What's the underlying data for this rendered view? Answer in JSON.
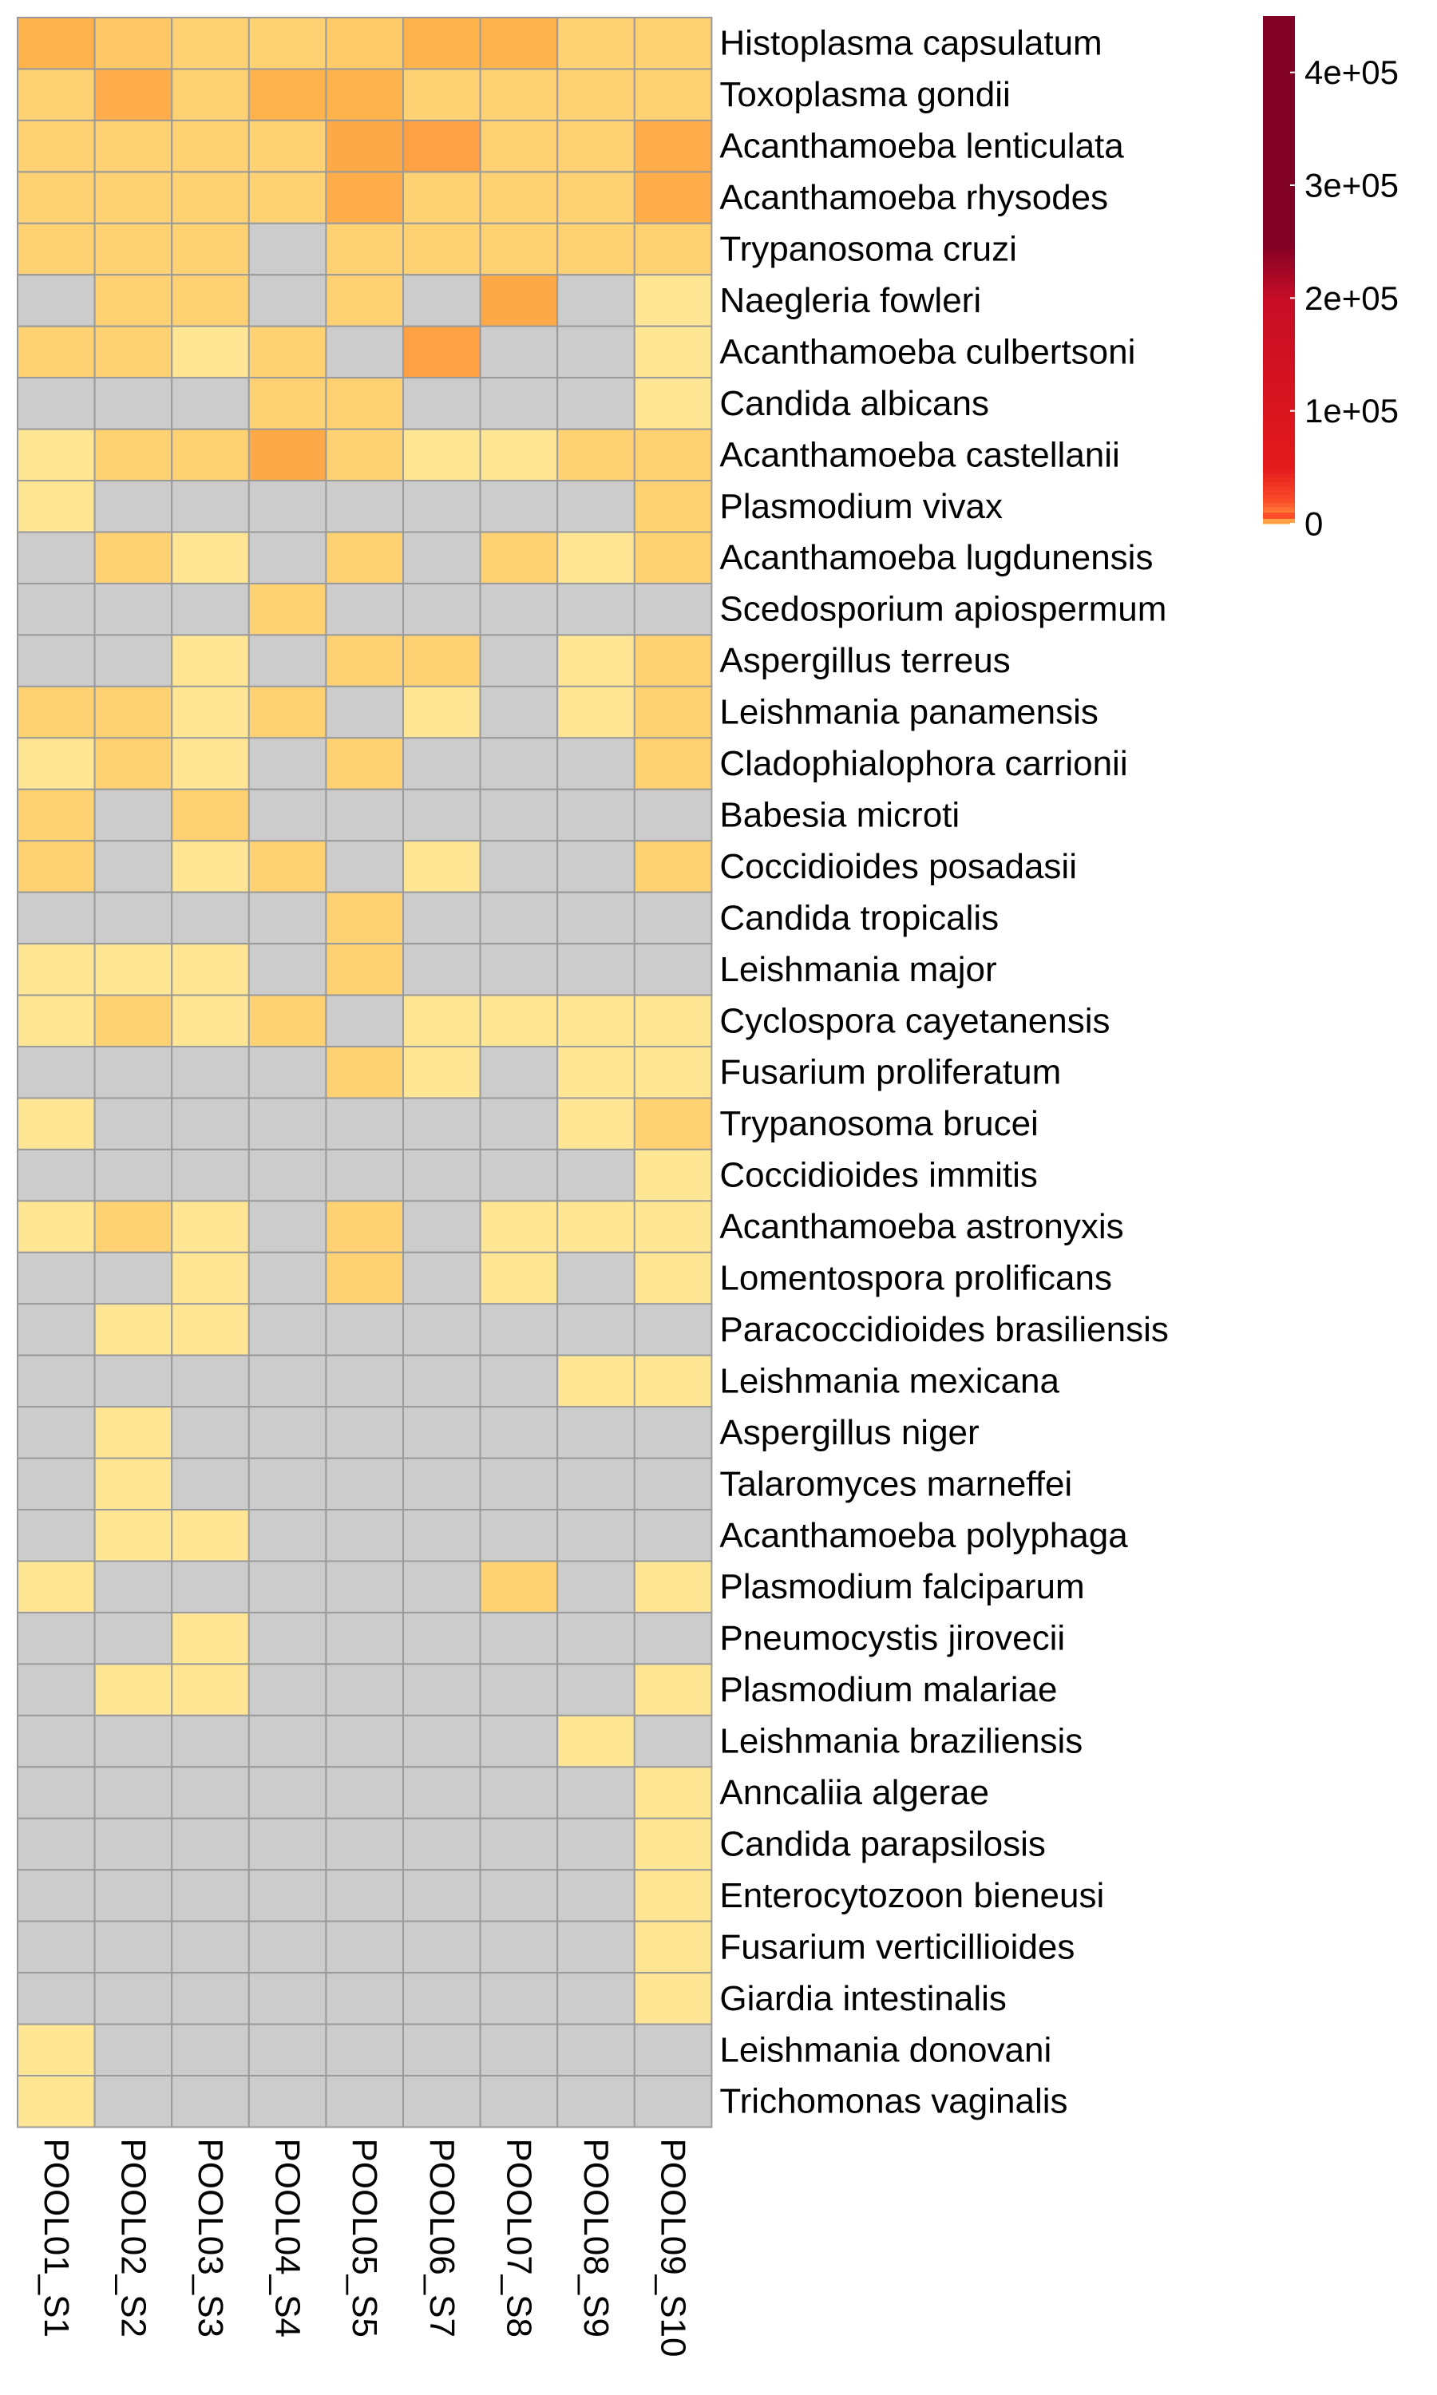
{
  "chart_data": {
    "type": "heatmap",
    "rows": [
      "Histoplasma capsulatum",
      "Toxoplasma gondii",
      "Acanthamoeba lenticulata",
      "Acanthamoeba rhysodes",
      "Trypanosoma cruzi",
      "Naegleria fowleri",
      "Acanthamoeba culbertsoni",
      "Candida albicans",
      "Acanthamoeba castellanii",
      "Plasmodium vivax",
      "Acanthamoeba lugdunensis",
      "Scedosporium apiospermum",
      "Aspergillus terreus",
      "Leishmania panamensis",
      "Cladophialophora carrionii",
      "Babesia microti",
      "Coccidioides posadasii",
      "Candida tropicalis",
      "Leishmania major",
      "Cyclospora cayetanensis",
      "Fusarium proliferatum",
      "Trypanosoma brucei",
      "Coccidioides immitis",
      "Acanthamoeba astronyxis",
      "Lomentospora prolificans",
      "Paracoccidioides brasiliensis",
      "Leishmania mexicana",
      "Aspergillus niger",
      "Talaromyces marneffei",
      "Acanthamoeba polyphaga",
      "Plasmodium falciparum",
      "Pneumocystis jirovecii",
      "Plasmodium malariae",
      "Leishmania braziliensis",
      "Anncaliia algerae",
      "Candida parapsilosis",
      "Enterocytozoon bieneusi",
      "Fusarium verticillioides",
      "Giardia intestinalis",
      "Leishmania donovani",
      "Trichomonas vaginalis"
    ],
    "columns": [
      "POOL01_S1",
      "POOL02_S2",
      "POOL03_S3",
      "POOL04_S4",
      "POOL05_S5",
      "POOL06_S7",
      "POOL07_S8",
      "POOL08_S9",
      "POOL09_S10"
    ],
    "values": [
      [
        3000,
        2000,
        1500,
        1500,
        1800,
        3000,
        3000,
        1500,
        1500
      ],
      [
        1500,
        3500,
        1500,
        3000,
        3000,
        1500,
        1500,
        1500,
        1500
      ],
      [
        1500,
        1500,
        1500,
        1500,
        4000,
        5000,
        1500,
        1500,
        3500
      ],
      [
        1500,
        1500,
        1500,
        1500,
        3500,
        1500,
        1500,
        1500,
        3500
      ],
      [
        1500,
        1500,
        1500,
        null,
        1500,
        1500,
        1500,
        1500,
        1500
      ],
      [
        null,
        1500,
        1500,
        null,
        1500,
        null,
        4000,
        null,
        500
      ],
      [
        1500,
        1500,
        500,
        1500,
        null,
        5000,
        null,
        null,
        500
      ],
      [
        null,
        null,
        null,
        1500,
        1500,
        null,
        null,
        null,
        500
      ],
      [
        500,
        1500,
        1500,
        4000,
        1500,
        500,
        500,
        1500,
        1500
      ],
      [
        500,
        null,
        null,
        null,
        null,
        null,
        null,
        null,
        1500
      ],
      [
        null,
        1500,
        500,
        null,
        1500,
        null,
        1500,
        500,
        1500
      ],
      [
        null,
        null,
        null,
        1500,
        null,
        null,
        null,
        null,
        null
      ],
      [
        null,
        null,
        500,
        null,
        1500,
        1500,
        null,
        500,
        1500
      ],
      [
        1500,
        1500,
        500,
        1500,
        null,
        500,
        null,
        500,
        1500
      ],
      [
        500,
        1500,
        500,
        null,
        1500,
        null,
        null,
        null,
        1500
      ],
      [
        1500,
        null,
        1500,
        null,
        null,
        null,
        null,
        null,
        null
      ],
      [
        1500,
        null,
        500,
        1500,
        null,
        500,
        null,
        null,
        1500
      ],
      [
        null,
        null,
        null,
        null,
        1500,
        null,
        null,
        null,
        null
      ],
      [
        500,
        500,
        500,
        null,
        1500,
        null,
        null,
        null,
        null
      ],
      [
        500,
        1500,
        500,
        1500,
        null,
        500,
        500,
        500,
        500
      ],
      [
        null,
        null,
        null,
        null,
        1500,
        500,
        null,
        500,
        500
      ],
      [
        500,
        null,
        null,
        null,
        null,
        null,
        null,
        500,
        1500
      ],
      [
        null,
        null,
        null,
        null,
        null,
        null,
        null,
        null,
        500
      ],
      [
        500,
        1500,
        500,
        null,
        1500,
        null,
        500,
        500,
        500
      ],
      [
        null,
        null,
        500,
        null,
        1500,
        null,
        500,
        null,
        500
      ],
      [
        null,
        500,
        500,
        null,
        null,
        null,
        null,
        null,
        null
      ],
      [
        null,
        null,
        null,
        null,
        null,
        null,
        null,
        500,
        500
      ],
      [
        null,
        500,
        null,
        null,
        null,
        null,
        null,
        null,
        null
      ],
      [
        null,
        500,
        null,
        null,
        null,
        null,
        null,
        null,
        null
      ],
      [
        null,
        500,
        500,
        null,
        null,
        null,
        null,
        null,
        null
      ],
      [
        500,
        null,
        null,
        null,
        null,
        null,
        1500,
        null,
        500
      ],
      [
        null,
        null,
        500,
        null,
        null,
        null,
        null,
        null,
        null
      ],
      [
        null,
        500,
        500,
        null,
        null,
        null,
        null,
        null,
        500
      ],
      [
        null,
        null,
        null,
        null,
        null,
        null,
        null,
        500,
        null
      ],
      [
        null,
        null,
        null,
        null,
        null,
        null,
        null,
        null,
        500
      ],
      [
        null,
        null,
        null,
        null,
        null,
        null,
        null,
        null,
        500
      ],
      [
        null,
        null,
        null,
        null,
        null,
        null,
        null,
        null,
        500
      ],
      [
        null,
        null,
        null,
        null,
        null,
        null,
        null,
        null,
        500
      ],
      [
        null,
        null,
        null,
        null,
        null,
        null,
        null,
        null,
        500
      ],
      [
        500,
        null,
        null,
        null,
        null,
        null,
        null,
        null,
        null
      ],
      [
        500,
        null,
        null,
        null,
        null,
        null,
        null,
        null,
        null
      ]
    ],
    "na_color": "#cccccc",
    "grid_color": "#9a9a9a",
    "color_scale": {
      "range": [
        0,
        450000
      ],
      "ticks": [
        0,
        100000,
        200000,
        300000,
        400000
      ],
      "tick_labels": [
        "0",
        "1e+05",
        "2e+05",
        "3e+05",
        "4e+05"
      ],
      "stops": [
        {
          "value": 0,
          "color": "#fff0a8"
        },
        {
          "value": 1000,
          "color": "#fedb80"
        },
        {
          "value": 3000,
          "color": "#feb24c"
        },
        {
          "value": 7000,
          "color": "#fd8d3c"
        },
        {
          "value": 20000,
          "color": "#fc4e2a"
        },
        {
          "value": 50000,
          "color": "#e31a1c"
        },
        {
          "value": 200000,
          "color": "#c60d26"
        },
        {
          "value": 250000,
          "color": "#800026"
        },
        {
          "value": 450000,
          "color": "#800026"
        }
      ]
    },
    "legend": {
      "position": "top-right"
    }
  }
}
